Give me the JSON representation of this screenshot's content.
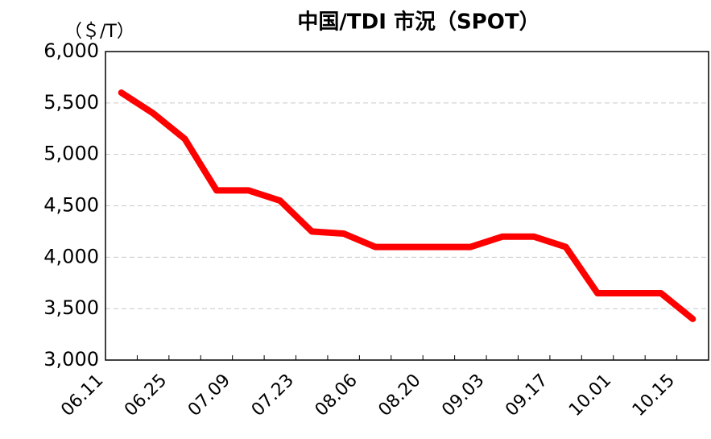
{
  "chart_data": {
    "type": "line",
    "title": "中国/TDI 市況（SPOT）",
    "y_axis_label": "（＄/T）",
    "categories": [
      "06.11",
      null,
      "06.25",
      null,
      "07.09",
      null,
      "07.23",
      null,
      "08.06",
      null,
      "08.20",
      null,
      "09.03",
      null,
      "09.17",
      null,
      "10.01",
      null,
      "10.15"
    ],
    "series": [
      {
        "name": "TDI",
        "color": "#ff0000",
        "values": [
          5600,
          5400,
          5150,
          4650,
          4650,
          4550,
          4250,
          4230,
          4100,
          4100,
          4100,
          4100,
          4200,
          4200,
          4100,
          3650,
          3650,
          3650,
          3400
        ]
      }
    ],
    "ylim": [
      3000,
      6000
    ],
    "yticks": [
      {
        "value": 3000,
        "label": "3,000"
      },
      {
        "value": 3500,
        "label": "3,500"
      },
      {
        "value": 4000,
        "label": "4,000"
      },
      {
        "value": 4500,
        "label": "4,500"
      },
      {
        "value": 5000,
        "label": "5,000"
      },
      {
        "value": 5500,
        "label": "5,500"
      },
      {
        "value": 6000,
        "label": "6,000"
      }
    ],
    "grid": true
  }
}
